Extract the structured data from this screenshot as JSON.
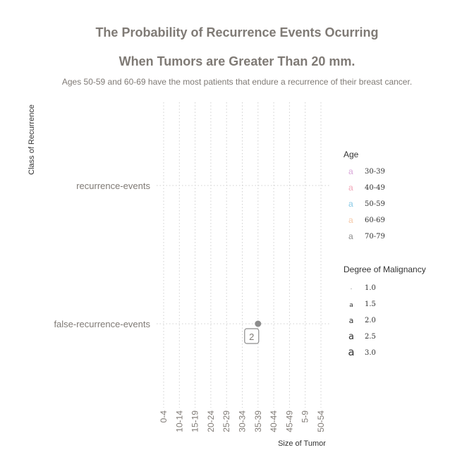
{
  "title_line1": "The Probability of Recurrence Events Ocurring",
  "title_line2": "When Tumors are Greater Than 20 mm.",
  "subtitle": "Ages 50-59 and 60-69 have the most patients that endure a recurrence of their breast cancer.",
  "chart_data": {
    "type": "scatter",
    "xlabel": "Size of Tumor",
    "ylabel": "Class of Recurrence",
    "x_categories": [
      "0-4",
      "10-14",
      "15-19",
      "20-24",
      "25-29",
      "30-34",
      "35-39",
      "40-44",
      "45-49",
      "5-9",
      "50-54"
    ],
    "y_categories": [
      "false-recurrence-events",
      "recurrence-events"
    ],
    "grid": true,
    "points": [
      {
        "x": "35-39",
        "y": "false-recurrence-events",
        "label": "2",
        "age": "70-79",
        "degree_of_malignancy": 2.0
      }
    ],
    "legends": {
      "age": {
        "title": "Age",
        "glyph": "a",
        "items": [
          {
            "label": "30-39",
            "color": "#d9a6d9"
          },
          {
            "label": "40-49",
            "color": "#f2a6b8"
          },
          {
            "label": "50-59",
            "color": "#86c8e6"
          },
          {
            "label": "60-69",
            "color": "#f5c9a8"
          },
          {
            "label": "70-79",
            "color": "#8c8c8c"
          }
        ]
      },
      "malignancy": {
        "title": "Degree of Malignancy",
        "items": [
          {
            "label": "1.0",
            "glyph": "·"
          },
          {
            "label": "1.5",
            "glyph": "a"
          },
          {
            "label": "2.0",
            "glyph": "a"
          },
          {
            "label": "2.5",
            "glyph": "a"
          },
          {
            "label": "3.0",
            "glyph": "a"
          }
        ]
      }
    }
  }
}
